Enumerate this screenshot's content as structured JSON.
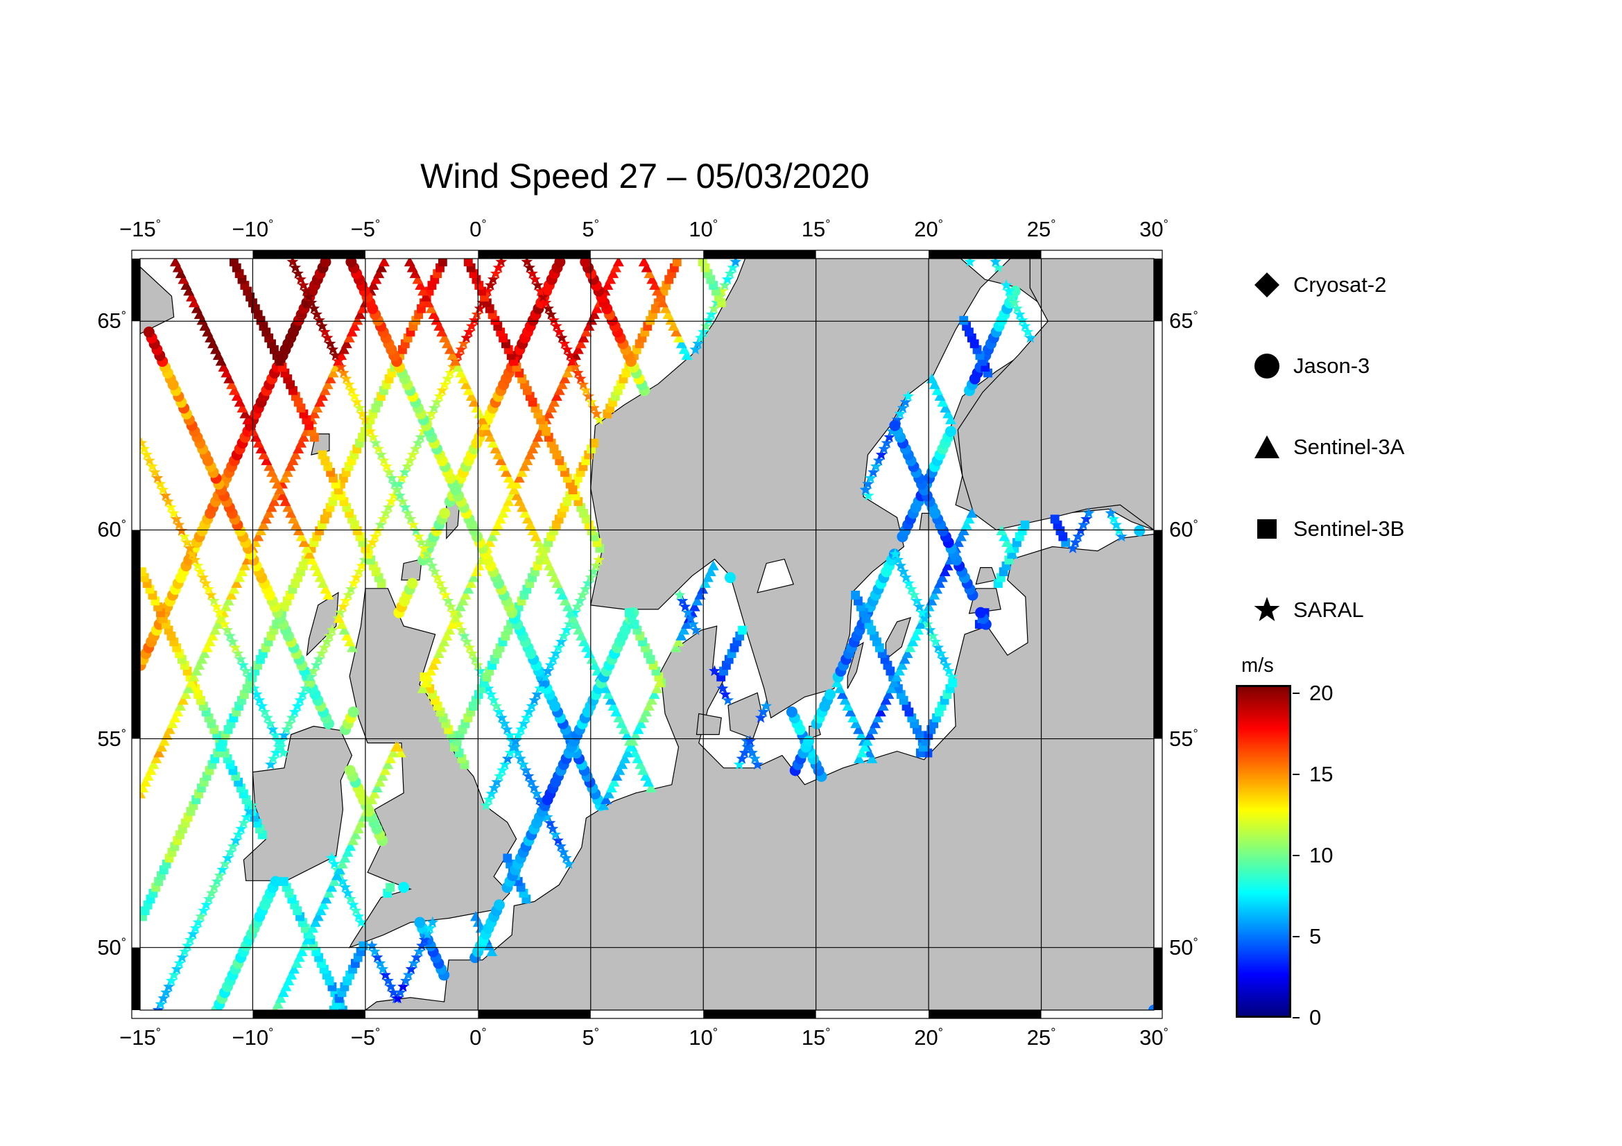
{
  "title": "Wind Speed 27 – 05/03/2020",
  "map": {
    "projection": "lambert-conic",
    "lon_range": [
      -15,
      30
    ],
    "lat_range": [
      48.5,
      66.5
    ],
    "land_color": "#bebebe",
    "sea_color": "#ffffff",
    "lon_ticks": [
      "−15",
      "−10",
      "−5",
      "0",
      "5",
      "10",
      "15",
      "20",
      "25",
      "30"
    ],
    "lat_ticks": [
      "50",
      "55",
      "60",
      "65"
    ],
    "degree_symbol": "°"
  },
  "legend": {
    "items": [
      {
        "label": "Cryosat-2",
        "icon": "diamond-icon"
      },
      {
        "label": "Jason-3",
        "icon": "circle-icon"
      },
      {
        "label": "Sentinel-3A",
        "icon": "triangle-icon"
      },
      {
        "label": "Sentinel-3B",
        "icon": "square-icon"
      },
      {
        "label": "SARAL",
        "icon": "star-icon"
      }
    ]
  },
  "colorbar": {
    "unit": "m/s",
    "min": 0,
    "max": 20.5,
    "ticks": [
      "0",
      "5",
      "10",
      "15",
      "20"
    ],
    "colors": [
      "#00007f",
      "#0000ff",
      "#007fff",
      "#00ffff",
      "#7fff7f",
      "#ffff00",
      "#ff7f00",
      "#ff0000",
      "#7f0000"
    ]
  }
}
